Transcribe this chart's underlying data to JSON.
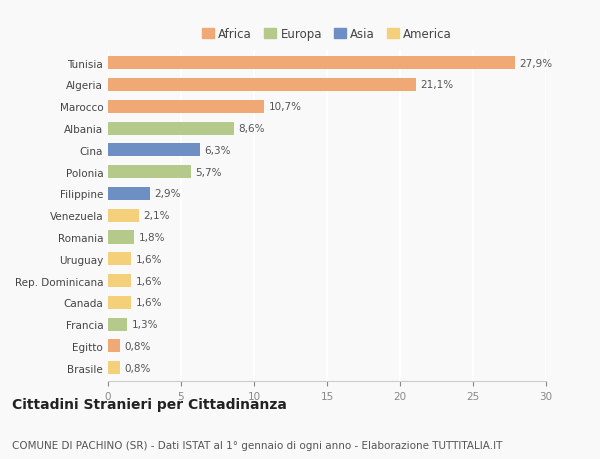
{
  "categories": [
    "Tunisia",
    "Algeria",
    "Marocco",
    "Albania",
    "Cina",
    "Polonia",
    "Filippine",
    "Venezuela",
    "Romania",
    "Uruguay",
    "Rep. Dominicana",
    "Canada",
    "Francia",
    "Egitto",
    "Brasile"
  ],
  "values": [
    27.9,
    21.1,
    10.7,
    8.6,
    6.3,
    5.7,
    2.9,
    2.1,
    1.8,
    1.6,
    1.6,
    1.6,
    1.3,
    0.8,
    0.8
  ],
  "labels": [
    "27,9%",
    "21,1%",
    "10,7%",
    "8,6%",
    "6,3%",
    "5,7%",
    "2,9%",
    "2,1%",
    "1,8%",
    "1,6%",
    "1,6%",
    "1,6%",
    "1,3%",
    "0,8%",
    "0,8%"
  ],
  "colors": [
    "#F0A875",
    "#F0A875",
    "#F0A875",
    "#B5C98A",
    "#6E8FC4",
    "#B5C98A",
    "#6E8FC4",
    "#F5D07A",
    "#B5C98A",
    "#F5D07A",
    "#F5D07A",
    "#F5D07A",
    "#B5C98A",
    "#F0A875",
    "#F5D07A"
  ],
  "legend_labels": [
    "Africa",
    "Europa",
    "Asia",
    "America"
  ],
  "legend_colors": [
    "#F0A875",
    "#B5C98A",
    "#6E8FC4",
    "#F5D07A"
  ],
  "xlim": [
    0,
    30
  ],
  "xticks": [
    0,
    5,
    10,
    15,
    20,
    25,
    30
  ],
  "title": "Cittadini Stranieri per Cittadinanza",
  "subtitle": "COMUNE DI PACHINO (SR) - Dati ISTAT al 1° gennaio di ogni anno - Elaborazione TUTTITALIA.IT",
  "background_color": "#f9f9f9",
  "grid_color": "#ffffff",
  "bar_height": 0.6,
  "title_fontsize": 10,
  "subtitle_fontsize": 7.5,
  "label_fontsize": 7.5,
  "tick_fontsize": 7.5,
  "legend_fontsize": 8.5
}
